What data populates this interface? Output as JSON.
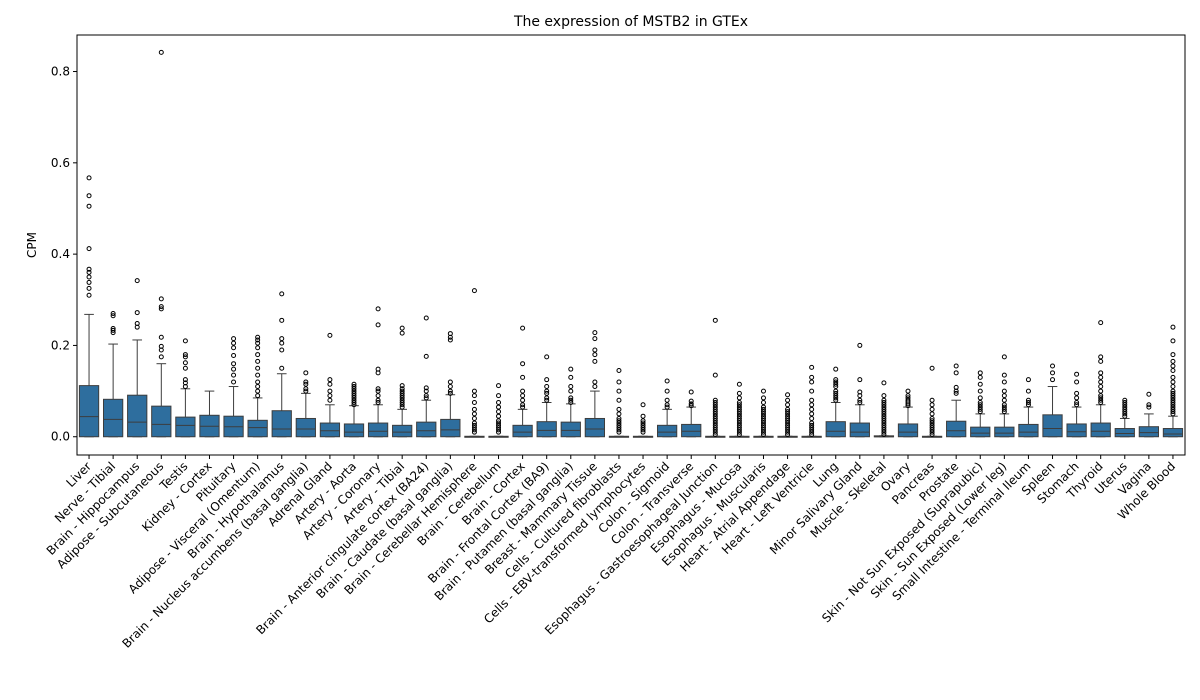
{
  "chart_data": {
    "type": "box",
    "title": "The expression of MSTB2 in GTEx",
    "ylabel": "CPM",
    "xlabel": "",
    "ylim": [
      -0.04,
      0.88
    ],
    "yticks": [
      "0.0",
      "0.2",
      "0.4",
      "0.6",
      "0.8"
    ],
    "box_color": "#2e6e9e",
    "grid": false,
    "series": [
      {
        "category": "Liver",
        "q1": 0.0,
        "median": 0.044,
        "q3": 0.112,
        "whisker_low": 0.0,
        "whisker_high": 0.268,
        "outliers": [
          0.31,
          0.325,
          0.338,
          0.35,
          0.36,
          0.367,
          0.412,
          0.505,
          0.528,
          0.567
        ]
      },
      {
        "category": "Nerve - Tibial",
        "q1": 0.0,
        "median": 0.038,
        "q3": 0.082,
        "whisker_low": 0.0,
        "whisker_high": 0.203,
        "outliers": [
          0.228,
          0.233,
          0.237,
          0.265,
          0.27
        ]
      },
      {
        "category": "Brain - Hippocampus",
        "q1": 0.0,
        "median": 0.032,
        "q3": 0.091,
        "whisker_low": 0.0,
        "whisker_high": 0.212,
        "outliers": [
          0.24,
          0.248,
          0.272,
          0.342
        ]
      },
      {
        "category": "Adipose - Subcutaneous",
        "q1": 0.0,
        "median": 0.027,
        "q3": 0.067,
        "whisker_low": 0.0,
        "whisker_high": 0.16,
        "outliers": [
          0.175,
          0.19,
          0.198,
          0.218,
          0.28,
          0.285,
          0.302,
          0.842
        ]
      },
      {
        "category": "Testis",
        "q1": 0.0,
        "median": 0.025,
        "q3": 0.043,
        "whisker_low": 0.0,
        "whisker_high": 0.105,
        "outliers": [
          0.11,
          0.118,
          0.125,
          0.15,
          0.162,
          0.175,
          0.18,
          0.21
        ]
      },
      {
        "category": "Kidney - Cortex",
        "q1": 0.0,
        "median": 0.023,
        "q3": 0.047,
        "whisker_low": 0.0,
        "whisker_high": 0.1,
        "outliers": []
      },
      {
        "category": "Pituitary",
        "q1": 0.0,
        "median": 0.022,
        "q3": 0.045,
        "whisker_low": 0.0,
        "whisker_high": 0.11,
        "outliers": [
          0.12,
          0.135,
          0.148,
          0.16,
          0.178,
          0.195,
          0.205,
          0.215
        ]
      },
      {
        "category": "Adipose - Visceral (Omentum)",
        "q1": 0.0,
        "median": 0.02,
        "q3": 0.036,
        "whisker_low": 0.0,
        "whisker_high": 0.085,
        "outliers": [
          0.09,
          0.1,
          0.11,
          0.12,
          0.135,
          0.15,
          0.165,
          0.18,
          0.195,
          0.205,
          0.212,
          0.218
        ]
      },
      {
        "category": "Brain - Hypothalamus",
        "q1": 0.0,
        "median": 0.017,
        "q3": 0.057,
        "whisker_low": 0.0,
        "whisker_high": 0.138,
        "outliers": [
          0.15,
          0.19,
          0.205,
          0.215,
          0.255,
          0.313
        ]
      },
      {
        "category": "Brain - Nucleus accumbens (basal ganglia)",
        "q1": 0.0,
        "median": 0.017,
        "q3": 0.04,
        "whisker_low": 0.0,
        "whisker_high": 0.095,
        "outliers": [
          0.1,
          0.105,
          0.115,
          0.12,
          0.14
        ]
      },
      {
        "category": "Adrenal Gland",
        "q1": 0.0,
        "median": 0.013,
        "q3": 0.03,
        "whisker_low": 0.0,
        "whisker_high": 0.07,
        "outliers": [
          0.08,
          0.09,
          0.1,
          0.115,
          0.125,
          0.222
        ]
      },
      {
        "category": "Artery - Aorta",
        "q1": 0.0,
        "median": 0.01,
        "q3": 0.028,
        "whisker_low": 0.0,
        "whisker_high": 0.068,
        "outliers": [
          0.07,
          0.075,
          0.08,
          0.085,
          0.09,
          0.095,
          0.1,
          0.105,
          0.11,
          0.115
        ]
      },
      {
        "category": "Artery - Coronary",
        "q1": 0.0,
        "median": 0.012,
        "q3": 0.03,
        "whisker_low": 0.0,
        "whisker_high": 0.07,
        "outliers": [
          0.075,
          0.08,
          0.09,
          0.1,
          0.105,
          0.14,
          0.148,
          0.245,
          0.28
        ]
      },
      {
        "category": "Artery - Tibial",
        "q1": 0.0,
        "median": 0.01,
        "q3": 0.025,
        "whisker_low": 0.0,
        "whisker_high": 0.06,
        "outliers": [
          0.065,
          0.07,
          0.075,
          0.08,
          0.085,
          0.09,
          0.095,
          0.1,
          0.105,
          0.112,
          0.227,
          0.238
        ]
      },
      {
        "category": "Brain - Anterior cingulate cortex (BA24)",
        "q1": 0.0,
        "median": 0.013,
        "q3": 0.032,
        "whisker_low": 0.0,
        "whisker_high": 0.08,
        "outliers": [
          0.085,
          0.09,
          0.1,
          0.107,
          0.176,
          0.26
        ]
      },
      {
        "category": "Brain - Caudate (basal ganglia)",
        "q1": 0.0,
        "median": 0.015,
        "q3": 0.038,
        "whisker_low": 0.0,
        "whisker_high": 0.092,
        "outliers": [
          0.095,
          0.1,
          0.11,
          0.12,
          0.212,
          0.218,
          0.226
        ]
      },
      {
        "category": "Brain - Cerebellar Hemisphere",
        "q1": 0.0,
        "median": 0.0,
        "q3": 0.001,
        "whisker_low": 0.0,
        "whisker_high": 0.001,
        "outliers": [
          0.01,
          0.015,
          0.02,
          0.025,
          0.03,
          0.04,
          0.05,
          0.06,
          0.075,
          0.09,
          0.1,
          0.32
        ]
      },
      {
        "category": "Brain - Cerebellum",
        "q1": 0.0,
        "median": 0.0,
        "q3": 0.001,
        "whisker_low": 0.0,
        "whisker_high": 0.001,
        "outliers": [
          0.01,
          0.015,
          0.02,
          0.025,
          0.03,
          0.035,
          0.045,
          0.055,
          0.065,
          0.075,
          0.09,
          0.112
        ]
      },
      {
        "category": "Brain - Cortex",
        "q1": 0.0,
        "median": 0.01,
        "q3": 0.025,
        "whisker_low": 0.0,
        "whisker_high": 0.06,
        "outliers": [
          0.065,
          0.07,
          0.08,
          0.09,
          0.1,
          0.13,
          0.16,
          0.238
        ]
      },
      {
        "category": "Brain - Frontal Cortex (BA9)",
        "q1": 0.0,
        "median": 0.014,
        "q3": 0.033,
        "whisker_low": 0.0,
        "whisker_high": 0.075,
        "outliers": [
          0.08,
          0.085,
          0.095,
          0.1,
          0.11,
          0.125,
          0.175
        ]
      },
      {
        "category": "Brain - Putamen (basal ganglia)",
        "q1": 0.0,
        "median": 0.014,
        "q3": 0.032,
        "whisker_low": 0.0,
        "whisker_high": 0.072,
        "outliers": [
          0.075,
          0.08,
          0.085,
          0.1,
          0.11,
          0.13,
          0.148
        ]
      },
      {
        "category": "Breast - Mammary Tissue",
        "q1": 0.0,
        "median": 0.017,
        "q3": 0.04,
        "whisker_low": 0.0,
        "whisker_high": 0.1,
        "outliers": [
          0.11,
          0.12,
          0.165,
          0.18,
          0.19,
          0.215,
          0.228
        ]
      },
      {
        "category": "Cells - Cultured fibroblasts",
        "q1": 0.0,
        "median": 0.0,
        "q3": 0.001,
        "whisker_low": 0.0,
        "whisker_high": 0.001,
        "outliers": [
          0.01,
          0.015,
          0.02,
          0.025,
          0.03,
          0.035,
          0.04,
          0.05,
          0.06,
          0.08,
          0.1,
          0.12,
          0.145
        ]
      },
      {
        "category": "Cells - EBV-transformed lymphocytes",
        "q1": 0.0,
        "median": 0.0,
        "q3": 0.001,
        "whisker_low": 0.0,
        "whisker_high": 0.001,
        "outliers": [
          0.01,
          0.015,
          0.02,
          0.025,
          0.03,
          0.035,
          0.045,
          0.07
        ]
      },
      {
        "category": "Colon - Sigmoid",
        "q1": 0.0,
        "median": 0.01,
        "q3": 0.025,
        "whisker_low": 0.0,
        "whisker_high": 0.06,
        "outliers": [
          0.065,
          0.07,
          0.08,
          0.1,
          0.122
        ]
      },
      {
        "category": "Colon - Transverse",
        "q1": 0.0,
        "median": 0.012,
        "q3": 0.027,
        "whisker_low": 0.0,
        "whisker_high": 0.065,
        "outliers": [
          0.068,
          0.072,
          0.078,
          0.098
        ]
      },
      {
        "category": "Esophagus - Gastroesophageal Junction",
        "q1": 0.0,
        "median": 0.0,
        "q3": 0.001,
        "whisker_low": 0.0,
        "whisker_high": 0.001,
        "outliers": [
          0.005,
          0.01,
          0.015,
          0.02,
          0.025,
          0.03,
          0.035,
          0.04,
          0.045,
          0.05,
          0.055,
          0.06,
          0.065,
          0.07,
          0.075,
          0.08,
          0.135,
          0.255
        ]
      },
      {
        "category": "Esophagus - Mucosa",
        "q1": 0.0,
        "median": 0.0,
        "q3": 0.001,
        "whisker_low": 0.0,
        "whisker_high": 0.001,
        "outliers": [
          0.005,
          0.01,
          0.015,
          0.02,
          0.025,
          0.03,
          0.035,
          0.04,
          0.045,
          0.05,
          0.055,
          0.06,
          0.065,
          0.07,
          0.075,
          0.085,
          0.095,
          0.115
        ]
      },
      {
        "category": "Esophagus - Muscularis",
        "q1": 0.0,
        "median": 0.0,
        "q3": 0.001,
        "whisker_low": 0.0,
        "whisker_high": 0.001,
        "outliers": [
          0.005,
          0.01,
          0.015,
          0.02,
          0.025,
          0.03,
          0.035,
          0.04,
          0.045,
          0.05,
          0.055,
          0.06,
          0.065,
          0.075,
          0.085,
          0.1
        ]
      },
      {
        "category": "Heart - Atrial Appendage",
        "q1": 0.0,
        "median": 0.0,
        "q3": 0.001,
        "whisker_low": 0.0,
        "whisker_high": 0.001,
        "outliers": [
          0.005,
          0.01,
          0.015,
          0.02,
          0.025,
          0.03,
          0.035,
          0.04,
          0.045,
          0.05,
          0.055,
          0.06,
          0.07,
          0.08,
          0.092
        ]
      },
      {
        "category": "Heart - Left Ventricle",
        "q1": 0.0,
        "median": 0.0,
        "q3": 0.001,
        "whisker_low": 0.0,
        "whisker_high": 0.001,
        "outliers": [
          0.005,
          0.01,
          0.015,
          0.02,
          0.025,
          0.03,
          0.04,
          0.05,
          0.06,
          0.07,
          0.08,
          0.1,
          0.12,
          0.13,
          0.152
        ]
      },
      {
        "category": "Lung",
        "q1": 0.0,
        "median": 0.012,
        "q3": 0.033,
        "whisker_low": 0.0,
        "whisker_high": 0.075,
        "outliers": [
          0.08,
          0.085,
          0.09,
          0.095,
          0.1,
          0.11,
          0.115,
          0.12,
          0.125,
          0.148
        ]
      },
      {
        "category": "Minor Salivary Gland",
        "q1": 0.0,
        "median": 0.01,
        "q3": 0.03,
        "whisker_low": 0.0,
        "whisker_high": 0.07,
        "outliers": [
          0.075,
          0.08,
          0.09,
          0.098,
          0.125,
          0.2
        ]
      },
      {
        "category": "Muscle - Skeletal",
        "q1": 0.0,
        "median": 0.0,
        "q3": 0.002,
        "whisker_low": 0.0,
        "whisker_high": 0.002,
        "outliers": [
          0.005,
          0.01,
          0.015,
          0.02,
          0.025,
          0.03,
          0.035,
          0.04,
          0.045,
          0.05,
          0.055,
          0.06,
          0.065,
          0.07,
          0.075,
          0.08,
          0.09,
          0.118
        ]
      },
      {
        "category": "Ovary",
        "q1": 0.0,
        "median": 0.01,
        "q3": 0.028,
        "whisker_low": 0.0,
        "whisker_high": 0.065,
        "outliers": [
          0.068,
          0.072,
          0.076,
          0.08,
          0.085,
          0.09,
          0.1
        ]
      },
      {
        "category": "Pancreas",
        "q1": 0.0,
        "median": 0.0,
        "q3": 0.001,
        "whisker_low": 0.0,
        "whisker_high": 0.001,
        "outliers": [
          0.005,
          0.01,
          0.015,
          0.02,
          0.025,
          0.03,
          0.035,
          0.04,
          0.05,
          0.06,
          0.07,
          0.08,
          0.15
        ]
      },
      {
        "category": "Prostate",
        "q1": 0.0,
        "median": 0.013,
        "q3": 0.034,
        "whisker_low": 0.0,
        "whisker_high": 0.08,
        "outliers": [
          0.095,
          0.1,
          0.108,
          0.14,
          0.155
        ]
      },
      {
        "category": "Skin - Not Sun Exposed (Suprapubic)",
        "q1": 0.0,
        "median": 0.008,
        "q3": 0.021,
        "whisker_low": 0.0,
        "whisker_high": 0.05,
        "outliers": [
          0.055,
          0.06,
          0.065,
          0.07,
          0.075,
          0.085,
          0.1,
          0.115,
          0.13,
          0.14
        ]
      },
      {
        "category": "Skin - Sun Exposed (Lower leg)",
        "q1": 0.0,
        "median": 0.008,
        "q3": 0.021,
        "whisker_low": 0.0,
        "whisker_high": 0.05,
        "outliers": [
          0.055,
          0.06,
          0.065,
          0.07,
          0.08,
          0.09,
          0.1,
          0.12,
          0.135,
          0.175
        ]
      },
      {
        "category": "Small Intestine - Terminal Ileum",
        "q1": 0.0,
        "median": 0.01,
        "q3": 0.027,
        "whisker_low": 0.0,
        "whisker_high": 0.065,
        "outliers": [
          0.07,
          0.075,
          0.08,
          0.1,
          0.125
        ]
      },
      {
        "category": "Spleen",
        "q1": 0.0,
        "median": 0.018,
        "q3": 0.048,
        "whisker_low": 0.0,
        "whisker_high": 0.11,
        "outliers": [
          0.125,
          0.14,
          0.155
        ]
      },
      {
        "category": "Stomach",
        "q1": 0.0,
        "median": 0.011,
        "q3": 0.028,
        "whisker_low": 0.0,
        "whisker_high": 0.065,
        "outliers": [
          0.07,
          0.075,
          0.085,
          0.095,
          0.12,
          0.137
        ]
      },
      {
        "category": "Thyroid",
        "q1": 0.0,
        "median": 0.012,
        "q3": 0.03,
        "whisker_low": 0.0,
        "whisker_high": 0.07,
        "outliers": [
          0.075,
          0.08,
          0.085,
          0.09,
          0.1,
          0.11,
          0.12,
          0.13,
          0.14,
          0.165,
          0.175,
          0.25
        ]
      },
      {
        "category": "Uterus",
        "q1": 0.0,
        "median": 0.007,
        "q3": 0.018,
        "whisker_low": 0.0,
        "whisker_high": 0.04,
        "outliers": [
          0.045,
          0.05,
          0.055,
          0.06,
          0.065,
          0.07,
          0.075,
          0.08
        ]
      },
      {
        "category": "Vagina",
        "q1": 0.0,
        "median": 0.009,
        "q3": 0.022,
        "whisker_low": 0.0,
        "whisker_high": 0.05,
        "outliers": [
          0.065,
          0.07,
          0.093
        ]
      },
      {
        "category": "Whole Blood",
        "q1": 0.0,
        "median": 0.006,
        "q3": 0.018,
        "whisker_low": 0.0,
        "whisker_high": 0.045,
        "outliers": [
          0.05,
          0.055,
          0.06,
          0.065,
          0.07,
          0.075,
          0.08,
          0.085,
          0.09,
          0.095,
          0.1,
          0.11,
          0.12,
          0.13,
          0.145,
          0.155,
          0.165,
          0.18,
          0.21,
          0.24
        ]
      }
    ]
  }
}
